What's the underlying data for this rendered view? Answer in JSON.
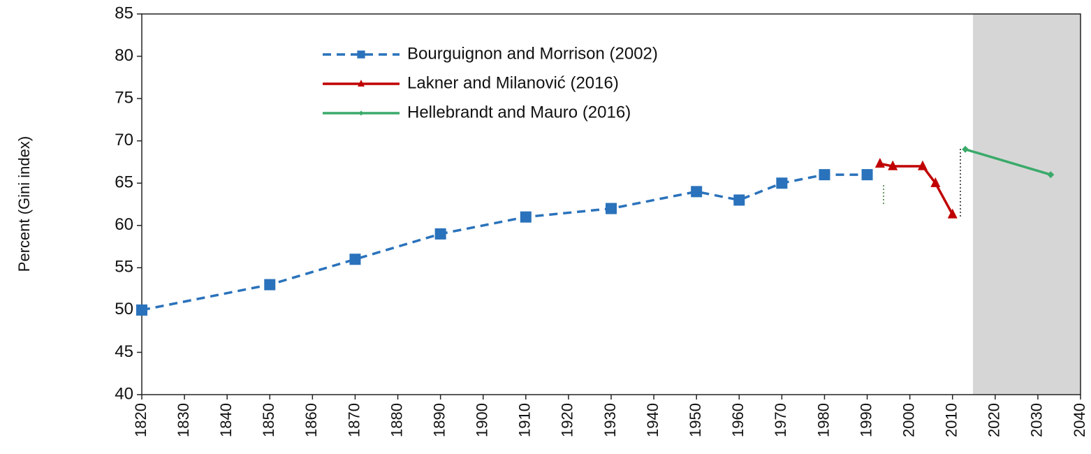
{
  "chart_data": {
    "type": "line",
    "y_label": "Percent (Gini index)",
    "xlim": [
      1820,
      2040
    ],
    "xticks": [
      1820,
      1830,
      1840,
      1850,
      1860,
      1870,
      1880,
      1890,
      1900,
      1910,
      1920,
      1930,
      1940,
      1950,
      1960,
      1970,
      1980,
      1990,
      2000,
      2010,
      2020,
      2030,
      2040
    ],
    "ylim": [
      40,
      85
    ],
    "yticks": [
      40,
      45,
      50,
      55,
      60,
      65,
      70,
      75,
      80,
      85
    ],
    "grid": false,
    "legend": "top",
    "series": [
      {
        "name": "Bourguignon and Morrison (2002)",
        "color": "#2a72bb",
        "dash": true,
        "marker": "square",
        "x": [
          1820,
          1850,
          1870,
          1890,
          1910,
          1930,
          1950,
          1960,
          1970,
          1980,
          1990
        ],
        "values": [
          50,
          53,
          56,
          59,
          61,
          62,
          64,
          63,
          65,
          66,
          66
        ]
      },
      {
        "name": "Lakner and Milanović (2016)",
        "color": "#c00000",
        "dash": false,
        "marker": "triangle",
        "x": [
          1993,
          1996,
          2003,
          2006,
          2010
        ],
        "values": [
          67.3,
          67,
          67,
          65,
          61.3
        ]
      },
      {
        "name": "Hellebrandt and Mauro (2016)",
        "color": "#3aaa6a",
        "dash": false,
        "marker": "diamond",
        "x": [
          2013,
          2033
        ],
        "values": [
          69,
          66
        ]
      }
    ]
  }
}
